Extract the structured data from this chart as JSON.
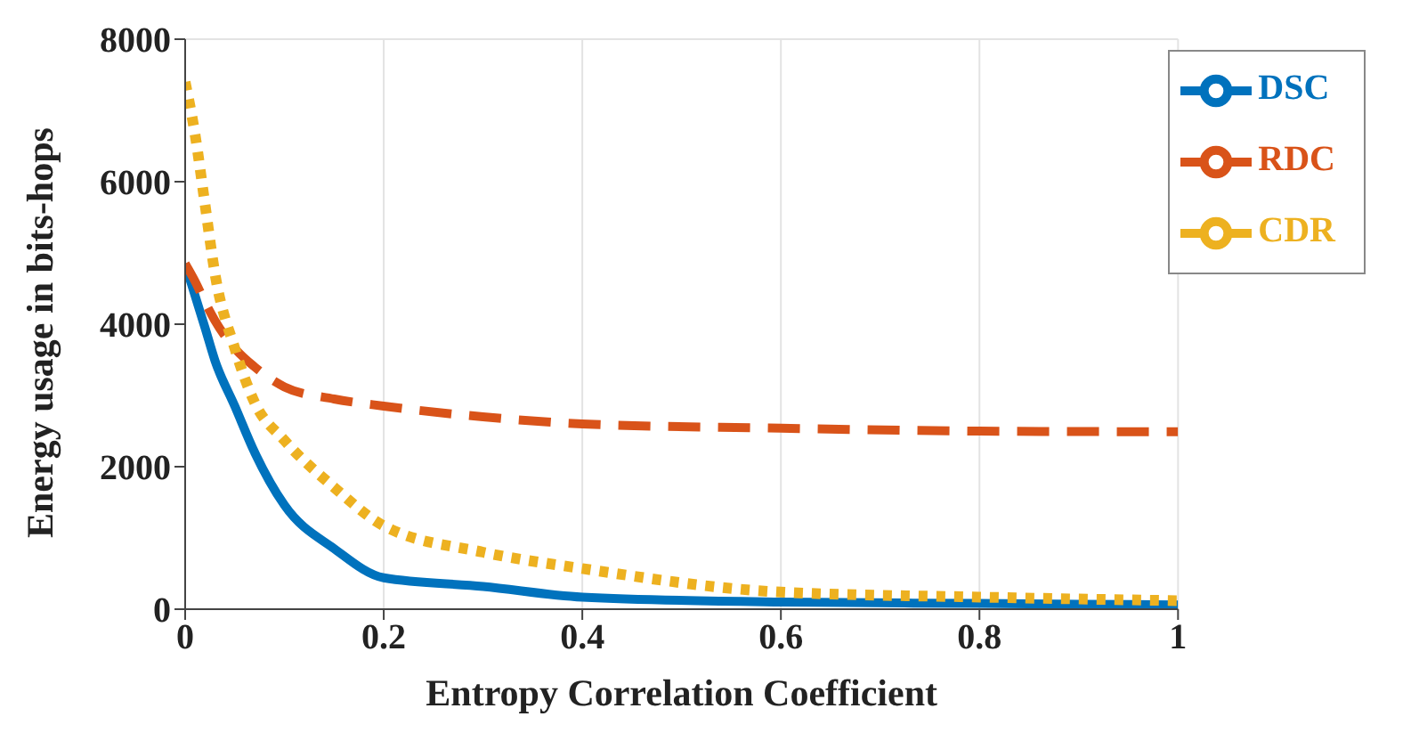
{
  "chart_data": {
    "type": "line",
    "xlabel": "Entropy Correlation Coefficient",
    "ylabel": "Energy usage in bits-hops",
    "x": [
      0,
      0.01,
      0.02,
      0.03,
      0.05,
      0.07,
      0.1,
      0.15,
      0.2,
      0.3,
      0.4,
      0.6,
      0.8,
      1
    ],
    "series": [
      {
        "name": "DSC",
        "color": "#0072bd",
        "line_style": "solid",
        "values": [
          4850,
          4400,
          3950,
          3490,
          2850,
          2200,
          1460,
          850,
          440,
          320,
          170,
          100,
          80,
          60
        ]
      },
      {
        "name": "RDC",
        "color": "#d95319",
        "line_style": "dashed",
        "values": [
          4850,
          4600,
          4310,
          4050,
          3660,
          3400,
          3120,
          2950,
          2850,
          2700,
          2600,
          2540,
          2500,
          2490
        ]
      },
      {
        "name": "CDR",
        "color": "#edb120",
        "line_style": "dotted",
        "values": [
          7400,
          6660,
          5680,
          4710,
          3660,
          2900,
          2370,
          1710,
          1170,
          800,
          570,
          240,
          170,
          120
        ]
      }
    ],
    "xlim": [
      0,
      1
    ],
    "xticks": [
      0,
      0.2,
      0.4,
      0.6,
      0.8,
      1
    ],
    "ylim": [
      0,
      8000
    ],
    "yticks": [
      0,
      2000,
      4000,
      6000,
      8000
    ],
    "grid": true,
    "legend": "top right",
    "marker": "none"
  }
}
